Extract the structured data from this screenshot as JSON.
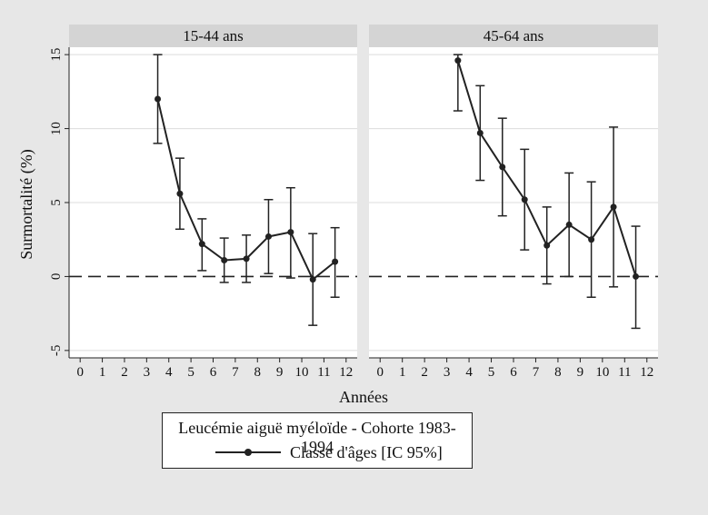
{
  "chart_data": {
    "type": "line",
    "x_ticks": [
      0,
      1,
      2,
      3,
      4,
      5,
      6,
      7,
      8,
      9,
      10,
      11,
      12
    ],
    "y_ticks": [
      15,
      10,
      5,
      0,
      -5
    ],
    "xlim": [
      -0.5,
      12.5
    ],
    "ylim": [
      -5.5,
      15.5
    ],
    "xlabel": "Années",
    "ylabel": "Surmortalité (%)",
    "reference_line": 0,
    "grid": true,
    "colors": {
      "series": "#222222",
      "panel_header": "#d4d4d4",
      "grid": "#dcdcdc",
      "background": "#e7e7e7"
    },
    "legend": {
      "title": "Leucémie aiguë myéloïde - Cohorte 1983-1994",
      "entry": "Classe d'âges [IC 95%]",
      "placement": "bottom"
    },
    "panels": [
      {
        "title": "15-44 ans",
        "points": [
          {
            "x": 3.5,
            "y": 12.0,
            "low": 9.0,
            "high": 15.0
          },
          {
            "x": 4.5,
            "y": 5.6,
            "low": 3.2,
            "high": 8.0
          },
          {
            "x": 5.5,
            "y": 2.2,
            "low": 0.4,
            "high": 3.9
          },
          {
            "x": 6.5,
            "y": 1.1,
            "low": -0.4,
            "high": 2.6
          },
          {
            "x": 7.5,
            "y": 1.2,
            "low": -0.4,
            "high": 2.8
          },
          {
            "x": 8.5,
            "y": 2.7,
            "low": 0.2,
            "high": 5.2
          },
          {
            "x": 9.5,
            "y": 3.0,
            "low": -0.1,
            "high": 6.0
          },
          {
            "x": 10.5,
            "y": -0.2,
            "low": -3.3,
            "high": 2.9
          },
          {
            "x": 11.5,
            "y": 1.0,
            "low": -1.4,
            "high": 3.3
          }
        ]
      },
      {
        "title": "45-64 ans",
        "points": [
          {
            "x": 3.5,
            "y": 14.6,
            "low": 11.2,
            "high": 15.0
          },
          {
            "x": 4.5,
            "y": 9.7,
            "low": 6.5,
            "high": 12.9
          },
          {
            "x": 5.5,
            "y": 7.4,
            "low": 4.1,
            "high": 10.7
          },
          {
            "x": 6.5,
            "y": 5.2,
            "low": 1.8,
            "high": 8.6
          },
          {
            "x": 7.5,
            "y": 2.1,
            "low": -0.5,
            "high": 4.7
          },
          {
            "x": 8.5,
            "y": 3.5,
            "low": 0.0,
            "high": 7.0
          },
          {
            "x": 9.5,
            "y": 2.5,
            "low": -1.4,
            "high": 6.4
          },
          {
            "x": 10.5,
            "y": 4.7,
            "low": -0.7,
            "high": 10.1
          },
          {
            "x": 11.5,
            "y": 0.0,
            "low": -3.5,
            "high": 3.4
          }
        ]
      }
    ]
  }
}
